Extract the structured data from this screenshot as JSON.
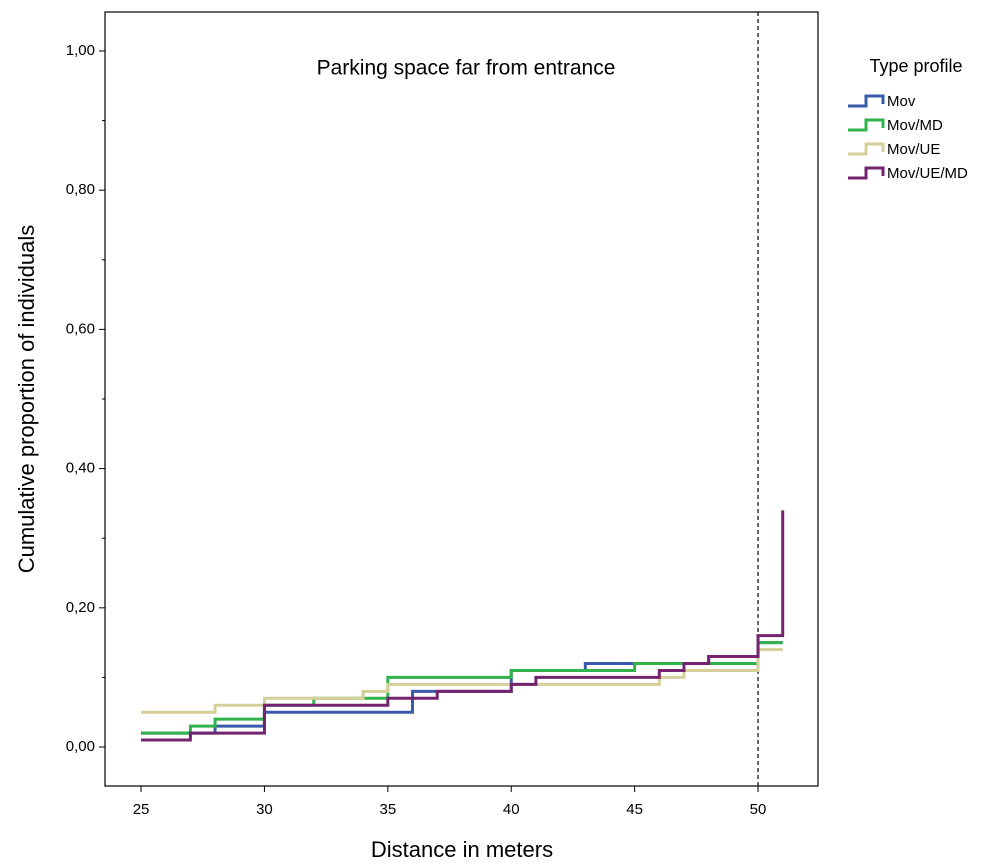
{
  "chart_data": {
    "type": "step",
    "title": "Parking space far from entrance",
    "x_label": "Distance in meters",
    "y_label": "Cumulative proportion of individuals",
    "legend_title": "Type profile",
    "xlim": [
      23.54,
      52.43
    ],
    "ylim": [
      -0.056,
      1.056
    ],
    "xticks": [
      25,
      30,
      35,
      40,
      45,
      50
    ],
    "yticks": [
      {
        "value": 0,
        "label": "0,00"
      },
      {
        "value": 0.2,
        "label": "0,20"
      },
      {
        "value": 0.4,
        "label": "0,40"
      },
      {
        "value": 0.6,
        "label": "0,60"
      },
      {
        "value": 0.8,
        "label": "0,80"
      },
      {
        "value": 1,
        "label": "1,00"
      }
    ],
    "yminorticks": [
      0.1,
      0.3,
      0.5,
      0.7,
      0.9
    ],
    "reference_line_x": 50,
    "series": [
      {
        "name": "Mov",
        "color": "#3a5bab",
        "x": [
          25,
          28,
          30,
          36,
          40,
          43,
          48,
          50,
          51
        ],
        "values": [
          0.02,
          0.03,
          0.05,
          0.08,
          0.11,
          0.12,
          0.13,
          0.15,
          0.15
        ]
      },
      {
        "name": "Mov/MD",
        "color": "#2fb34a",
        "x": [
          25,
          27,
          28,
          30,
          32,
          35,
          40,
          45,
          50,
          51
        ],
        "values": [
          0.02,
          0.03,
          0.04,
          0.06,
          0.07,
          0.1,
          0.11,
          0.12,
          0.15,
          0.15
        ]
      },
      {
        "name": "Mov/UE",
        "color": "#d6cf9a",
        "x": [
          25,
          28,
          30,
          34,
          35,
          46,
          47,
          50,
          51
        ],
        "values": [
          0.05,
          0.06,
          0.07,
          0.08,
          0.09,
          0.1,
          0.11,
          0.14,
          0.14
        ]
      },
      {
        "name": "Mov/UE/MD",
        "color": "#74246e",
        "x": [
          25,
          27,
          30,
          35,
          37,
          40,
          41,
          46,
          47,
          48,
          50,
          51
        ],
        "values": [
          0.01,
          0.02,
          0.06,
          0.07,
          0.08,
          0.09,
          0.1,
          0.11,
          0.12,
          0.13,
          0.16,
          0.34
        ]
      }
    ]
  }
}
